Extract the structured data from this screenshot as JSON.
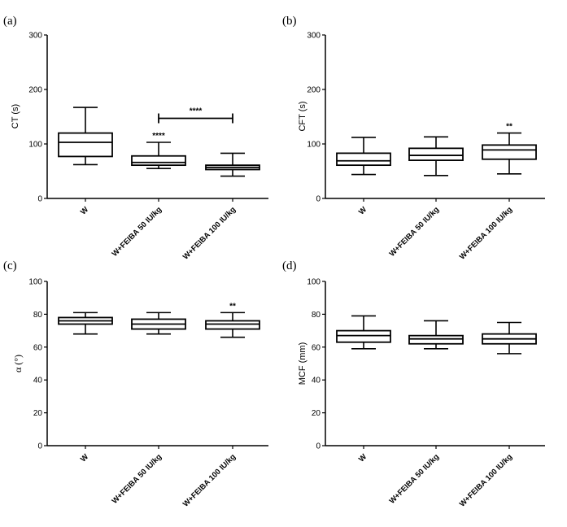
{
  "chart_data": [
    {
      "type": "boxplot",
      "panel": "(a)",
      "ylabel": "CT (s)",
      "ylim": [
        0,
        300
      ],
      "yticks": [
        0,
        100,
        200,
        300
      ],
      "categories": [
        "W",
        "W+FEIBA 50 IU/kg",
        "W+FEIBA 100 IU/kg"
      ],
      "boxes": [
        {
          "min": 62,
          "q1": 77,
          "median": 103,
          "q3": 120,
          "max": 167,
          "sig": ""
        },
        {
          "min": 55,
          "q1": 61,
          "median": 66,
          "q3": 78,
          "max": 103,
          "sig": "****"
        },
        {
          "min": 41,
          "q1": 53,
          "median": 57,
          "q3": 61,
          "max": 83,
          "sig": ""
        }
      ],
      "bracket": {
        "from": 1,
        "to": 2,
        "y": 147,
        "label": "****"
      }
    },
    {
      "type": "boxplot",
      "panel": "(b)",
      "ylabel": "CFT (s)",
      "ylim": [
        0,
        300
      ],
      "yticks": [
        0,
        100,
        200,
        300
      ],
      "categories": [
        "W",
        "W+FEIBA 50 IU/kg",
        "W+FEIBA 100 IU/kg"
      ],
      "boxes": [
        {
          "min": 44,
          "q1": 61,
          "median": 69,
          "q3": 83,
          "max": 112,
          "sig": ""
        },
        {
          "min": 42,
          "q1": 70,
          "median": 79,
          "q3": 92,
          "max": 113,
          "sig": ""
        },
        {
          "min": 45,
          "q1": 72,
          "median": 89,
          "q3": 98,
          "max": 120,
          "sig": "**"
        }
      ]
    },
    {
      "type": "boxplot",
      "panel": "(c)",
      "ylabel": "α (°)",
      "ylim": [
        0,
        100
      ],
      "yticks": [
        0,
        20,
        40,
        60,
        80,
        100
      ],
      "categories": [
        "W",
        "W+FEIBA 50 IU/kg",
        "W+FEIBA 100 IU/kg"
      ],
      "boxes": [
        {
          "min": 68,
          "q1": 74,
          "median": 76,
          "q3": 78,
          "max": 81,
          "sig": ""
        },
        {
          "min": 68,
          "q1": 71,
          "median": 74,
          "q3": 77,
          "max": 81,
          "sig": ""
        },
        {
          "min": 66,
          "q1": 71,
          "median": 74,
          "q3": 76,
          "max": 81,
          "sig": "**"
        }
      ]
    },
    {
      "type": "boxplot",
      "panel": "(d)",
      "ylabel": "MCF (mm)",
      "ylim": [
        0,
        100
      ],
      "yticks": [
        0,
        20,
        40,
        60,
        80,
        100
      ],
      "categories": [
        "W",
        "W+FEIBA 50 IU/kg",
        "W+FEIBA 100 IU/kg"
      ],
      "boxes": [
        {
          "min": 59,
          "q1": 63,
          "median": 67,
          "q3": 70,
          "max": 79,
          "sig": ""
        },
        {
          "min": 59,
          "q1": 62,
          "median": 65,
          "q3": 67,
          "max": 76,
          "sig": ""
        },
        {
          "min": 56,
          "q1": 62,
          "median": 65,
          "q3": 68,
          "max": 75,
          "sig": ""
        }
      ]
    }
  ]
}
